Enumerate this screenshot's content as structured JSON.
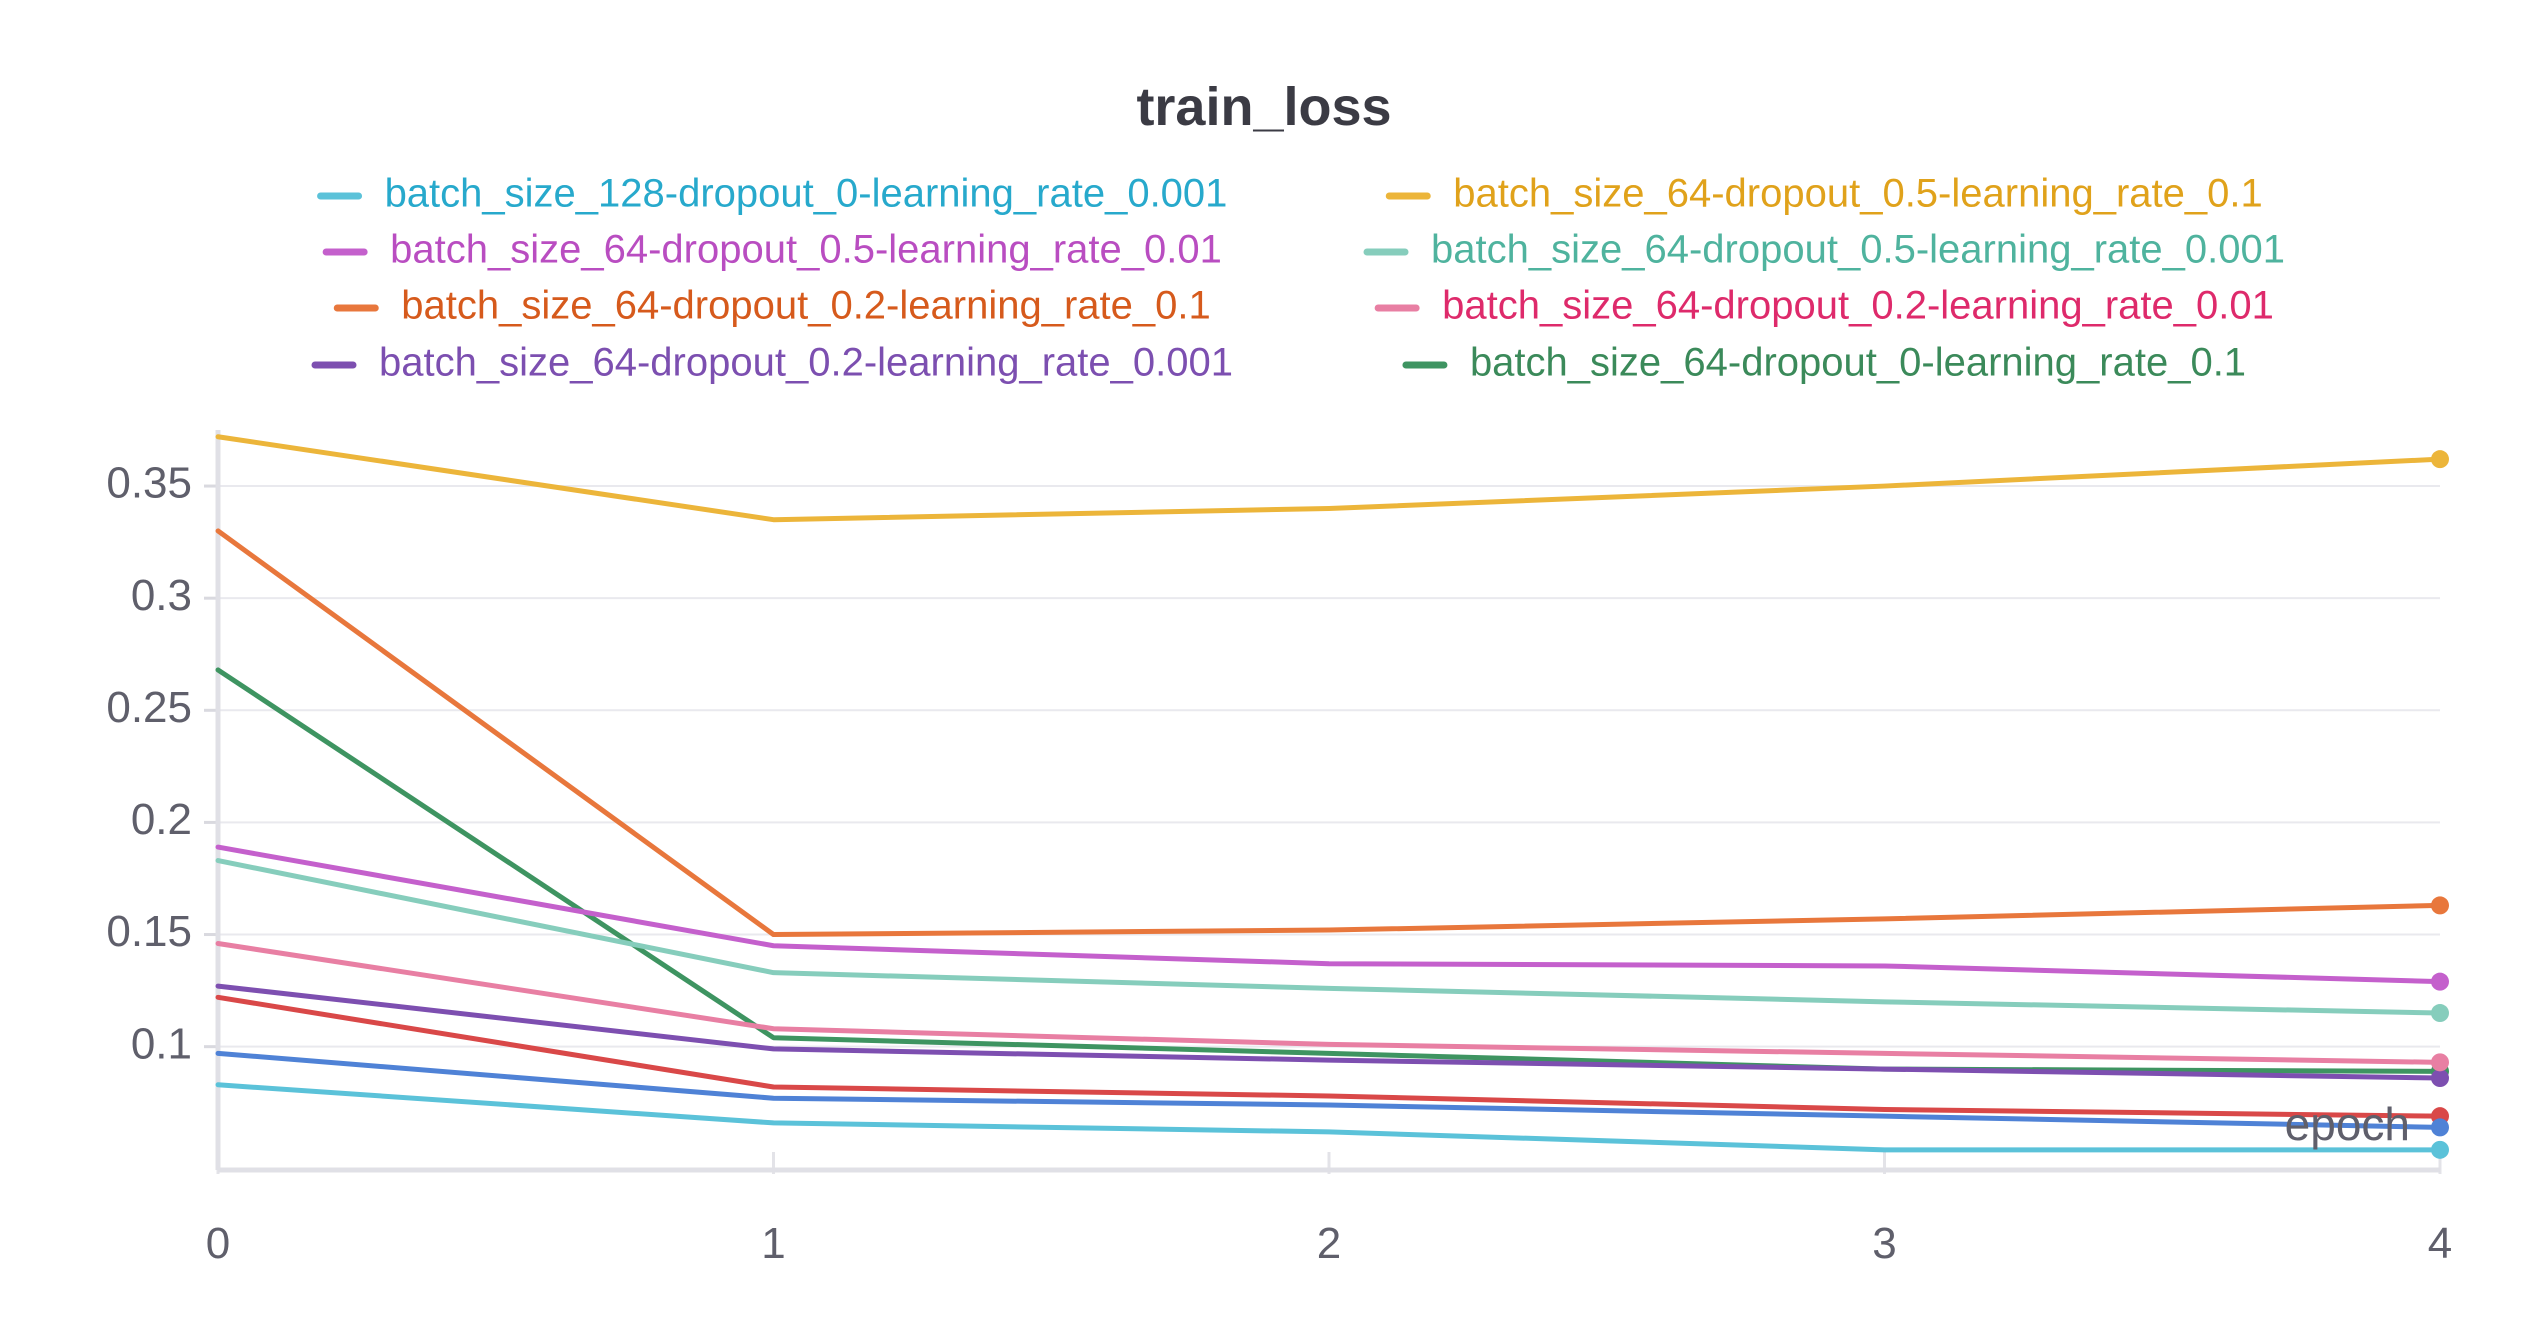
{
  "chart_data": {
    "type": "line",
    "title": "train_loss",
    "xlabel": "epoch",
    "ylabel": "",
    "x": [
      0,
      1,
      2,
      3,
      4
    ],
    "xlim": [
      0,
      4
    ],
    "ylim": [
      0.045,
      0.375
    ],
    "x_ticks": [
      "0",
      "1",
      "2",
      "3",
      "4"
    ],
    "y_ticks": [
      {
        "value": 0.1,
        "label": "0.1"
      },
      {
        "value": 0.15,
        "label": "0.15"
      },
      {
        "value": 0.2,
        "label": "0.2"
      },
      {
        "value": 0.25,
        "label": "0.25"
      },
      {
        "value": 0.3,
        "label": "0.3"
      },
      {
        "value": 0.35,
        "label": "0.35"
      }
    ],
    "grid": true,
    "legend_position": "top",
    "series": [
      {
        "name": "batch_size_128-dropout_0-learning_rate_0.001",
        "line_color": "#5bc2d9",
        "text_color": "#27a9cc",
        "values": [
          0.083,
          0.066,
          0.062,
          0.054,
          0.054
        ]
      },
      {
        "name": "batch_size_64-dropout_0.5-learning_rate_0.1",
        "line_color": "#ecb53a",
        "text_color": "#e0a21b",
        "values": [
          0.372,
          0.335,
          0.34,
          0.35,
          0.362
        ]
      },
      {
        "name": "batch_size_64-dropout_0.5-learning_rate_0.01",
        "line_color": "#c460cc",
        "text_color": "#b94dc1",
        "values": [
          0.189,
          0.145,
          0.137,
          0.136,
          0.129
        ]
      },
      {
        "name": "batch_size_64-dropout_0.5-learning_rate_0.001",
        "line_color": "#86cdbc",
        "text_color": "#4fb39e",
        "values": [
          0.183,
          0.133,
          0.126,
          0.12,
          0.115
        ]
      },
      {
        "name": "batch_size_64-dropout_0.2-learning_rate_0.1",
        "line_color": "#e8773c",
        "text_color": "#d65a1c",
        "values": [
          0.33,
          0.15,
          0.152,
          0.157,
          0.163
        ]
      },
      {
        "name": "batch_size_64-dropout_0.2-learning_rate_0.01",
        "line_color": "#e87fa3",
        "text_color": "#de2a6b",
        "values": [
          0.146,
          0.108,
          0.101,
          0.097,
          0.093
        ]
      },
      {
        "name": "batch_size_64-dropout_0.2-learning_rate_0.001",
        "line_color": "#7d4fb0",
        "text_color": "#7c4fb0",
        "values": [
          0.127,
          0.099,
          0.094,
          0.09,
          0.086
        ]
      },
      {
        "name": "batch_size_64-dropout_0-learning_rate_0.1",
        "line_color": "#3e9461",
        "text_color": "#3b8a5a",
        "values": [
          0.268,
          0.104,
          0.097,
          0.09,
          0.089
        ]
      }
    ],
    "unlabeled_series": [
      {
        "line_color": "#d94848",
        "values": [
          0.122,
          0.082,
          0.078,
          0.072,
          0.069
        ]
      },
      {
        "line_color": "#4f82d6",
        "values": [
          0.097,
          0.077,
          0.074,
          0.069,
          0.064
        ]
      }
    ]
  }
}
